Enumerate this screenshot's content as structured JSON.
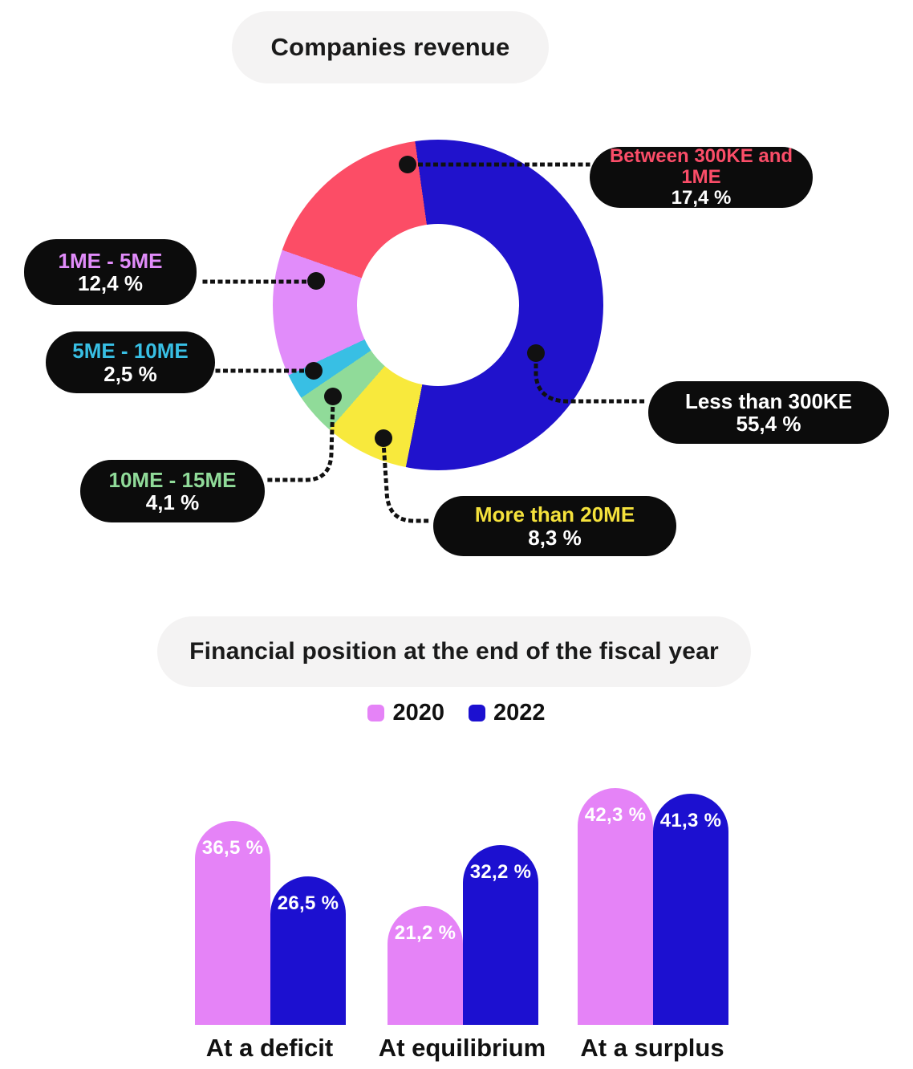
{
  "chart_data": [
    {
      "type": "pie",
      "variant": "donut",
      "title": "Companies revenue",
      "legend_position": "callout-pills",
      "slices_clockwise_from_top": [
        {
          "label": "Less than 300KE",
          "value": 55.4,
          "value_label": "55,4 %",
          "color": "#2012cc",
          "label_text_color": "#ffffff"
        },
        {
          "label": "More than 20ME",
          "value": 8.3,
          "value_label": "8,3 %",
          "color": "#f8e93c",
          "label_text_color": "#f5e23c"
        },
        {
          "label": "10ME - 15ME",
          "value": 4.1,
          "value_label": "4,1 %",
          "color": "#90db99",
          "label_text_color": "#90db99"
        },
        {
          "label": "5ME - 10ME",
          "value": 2.5,
          "value_label": "2,5 %",
          "color": "#38bfe4",
          "label_text_color": "#38bfe4"
        },
        {
          "label": "1ME - 5ME",
          "value": 12.4,
          "value_label": "12,4 %",
          "color": "#e18cfa",
          "label_text_color": "#e18cfa"
        },
        {
          "label": "Between 300KE and 1ME",
          "value": 17.4,
          "value_label": "17,4 %",
          "color": "#fc4d66",
          "label_text_color": "#fb4d68"
        }
      ]
    },
    {
      "type": "bar",
      "title": "Financial position at the end of the fiscal year",
      "categories": [
        "At a deficit",
        "At equilibrium",
        "At a surplus"
      ],
      "series": [
        {
          "name": "2020",
          "color": "#e583f7",
          "values": [
            36.5,
            21.2,
            42.3
          ],
          "value_labels": [
            "36,5 %",
            "21,2 %",
            "42,3 %"
          ]
        },
        {
          "name": "2022",
          "color": "#1c10d0",
          "values": [
            26.5,
            32.2,
            41.3
          ],
          "value_labels": [
            "26,5 %",
            "32,2 %",
            "41,3 %"
          ]
        }
      ],
      "ylim": [
        0,
        45
      ],
      "grid": false,
      "legend_position": "top-center",
      "value_labels_shown": true
    }
  ],
  "ui": {
    "pill_background": "#0c0c0c",
    "title_pill_background": "#f4f3f3",
    "connector_color": "#111111"
  }
}
